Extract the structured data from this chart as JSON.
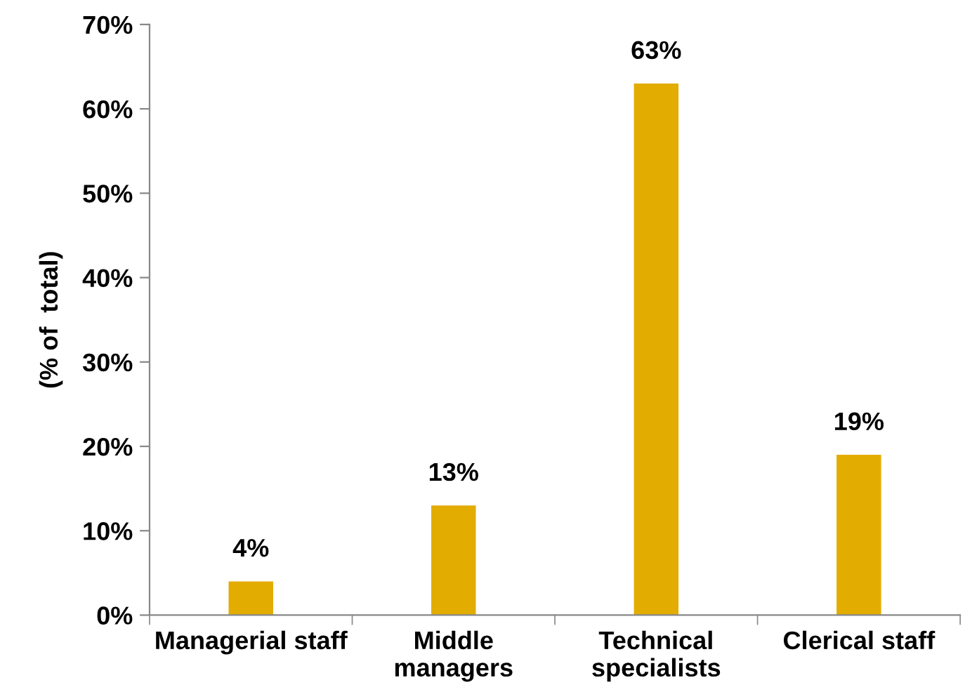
{
  "chart_data": {
    "type": "bar",
    "ylabel": "(% of  total)",
    "categories": [
      "Managerial staff",
      "Middle\nmanagers",
      "Technical\nspecialists",
      "Clerical staff"
    ],
    "values": [
      4,
      13,
      63,
      19
    ],
    "color": "#e2ac00",
    "data_labels": true,
    "value_labels": [
      "4%",
      "13%",
      "63%",
      "19%"
    ],
    "ylim": [
      0,
      70
    ],
    "yticks": [
      {
        "value": 0,
        "label": "0%"
      },
      {
        "value": 10,
        "label": "10%"
      },
      {
        "value": 20,
        "label": "20%"
      },
      {
        "value": 30,
        "label": "30%"
      },
      {
        "value": 40,
        "label": "40%"
      },
      {
        "value": 50,
        "label": "50%"
      },
      {
        "value": 60,
        "label": "60%"
      },
      {
        "value": 70,
        "label": "70%"
      }
    ],
    "grid": false,
    "legend": false
  }
}
